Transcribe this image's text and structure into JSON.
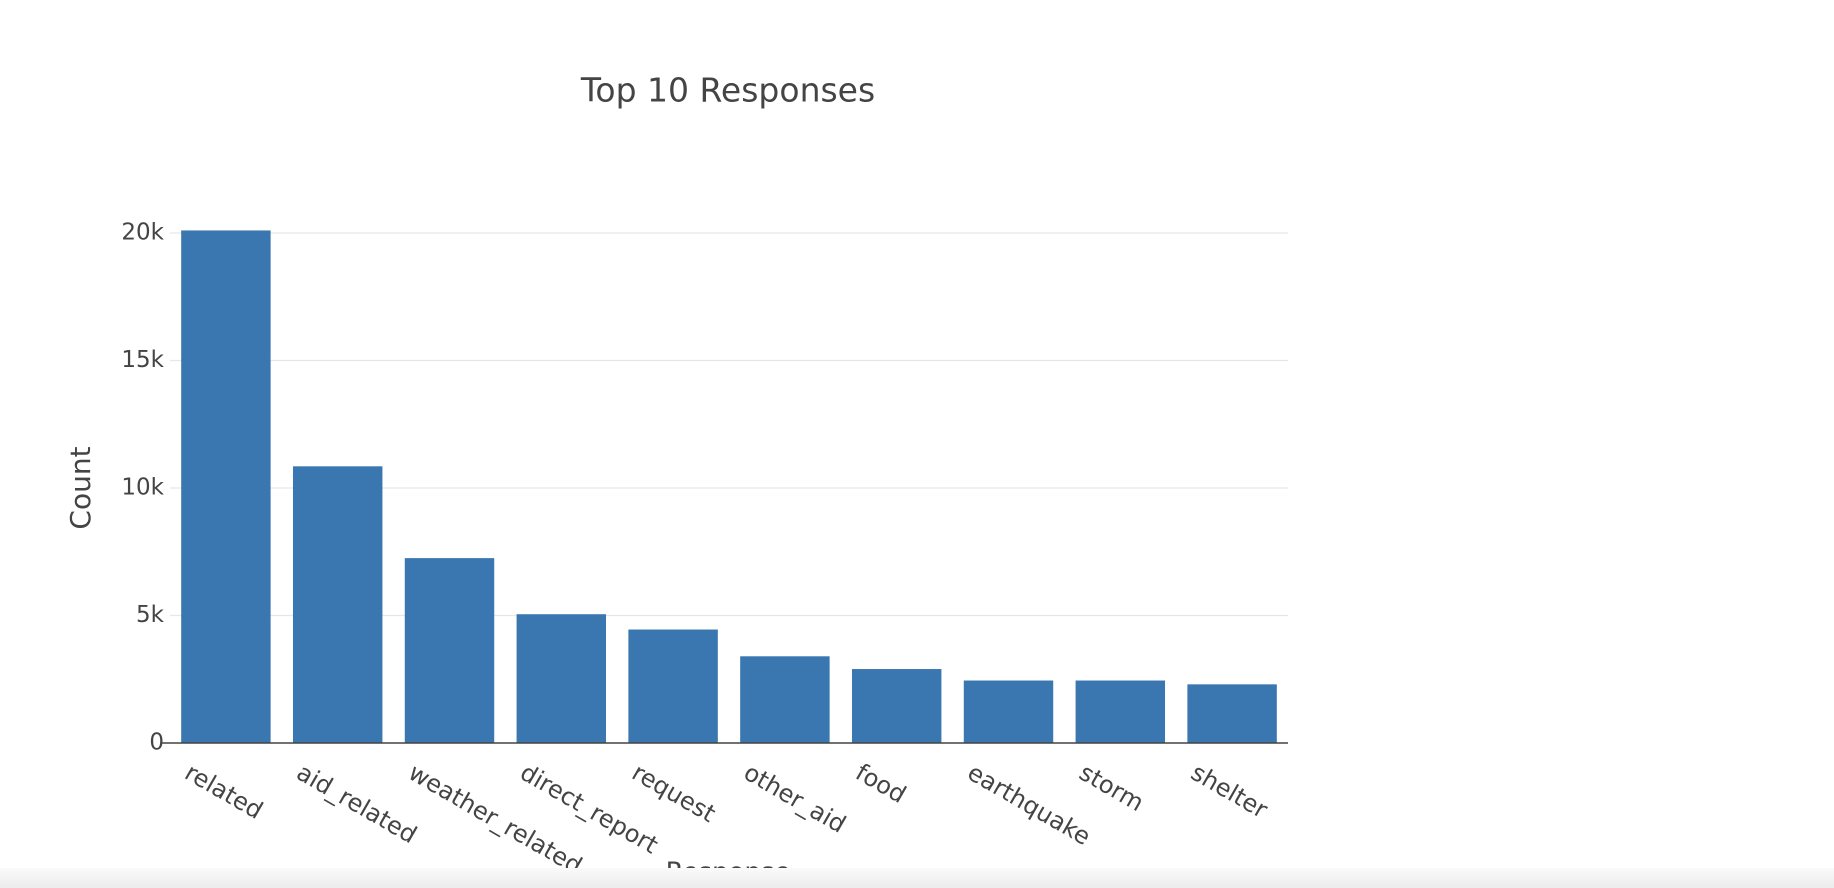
{
  "chart_data": {
    "type": "bar",
    "title": "Top 10 Responses",
    "x_label": "Response",
    "y_label": "Count",
    "categories": [
      "related",
      "aid_related",
      "weather_related",
      "direct_report",
      "request",
      "other_aid",
      "food",
      "earthquake",
      "storm",
      "shelter"
    ],
    "values": [
      20100,
      10850,
      7250,
      5050,
      4450,
      3400,
      2900,
      2450,
      2450,
      2300
    ],
    "color": "#3a76af",
    "ylim": [
      0,
      20000
    ],
    "yticks": [
      0,
      {
        "value": 5000,
        "label": "5k"
      },
      {
        "value": 10000,
        "label": "10k"
      },
      {
        "value": 15000,
        "label": "15k"
      },
      {
        "value": 20000,
        "label": "20k"
      }
    ],
    "grid": true
  }
}
